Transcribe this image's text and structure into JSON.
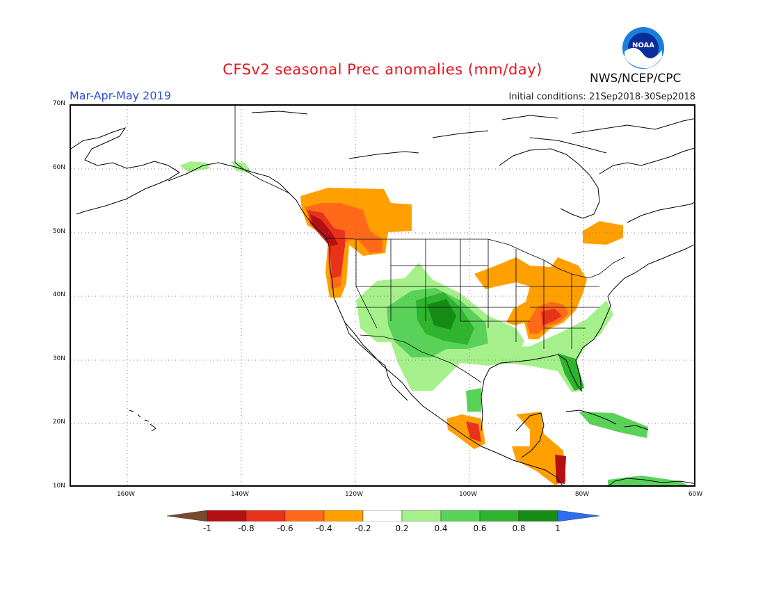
{
  "title": "CFSv2 seasonal Prec anomalies (mm/day)",
  "season": "Mar-Apr-May 2019",
  "initial_conditions": "Initial conditions: 21Sep2018-30Sep2018",
  "agency": "NWS/NCEP/CPC",
  "logo_text": "NOAA",
  "lat_labels": [
    "70N",
    "60N",
    "50N",
    "40N",
    "30N",
    "20N",
    "10N"
  ],
  "lon_labels": [
    "160W",
    "140W",
    "120W",
    "100W",
    "80W",
    "60W"
  ],
  "colorbar": {
    "labels": [
      "-1",
      "-0.8",
      "-0.6",
      "-0.4",
      "-0.2",
      "0.2",
      "0.4",
      "0.6",
      "0.8",
      "1"
    ],
    "colors": {
      "below_min": "#7a4a2a",
      "c1": "#b31014",
      "c2": "#e8321c",
      "c3": "#ff6a1a",
      "c4": "#ffa000",
      "c5": "#ffffff",
      "c6": "#a6f08c",
      "c7": "#5ad25a",
      "c8": "#2eb42e",
      "c9": "#168c16",
      "above_max": "#2e6ef0"
    }
  }
}
